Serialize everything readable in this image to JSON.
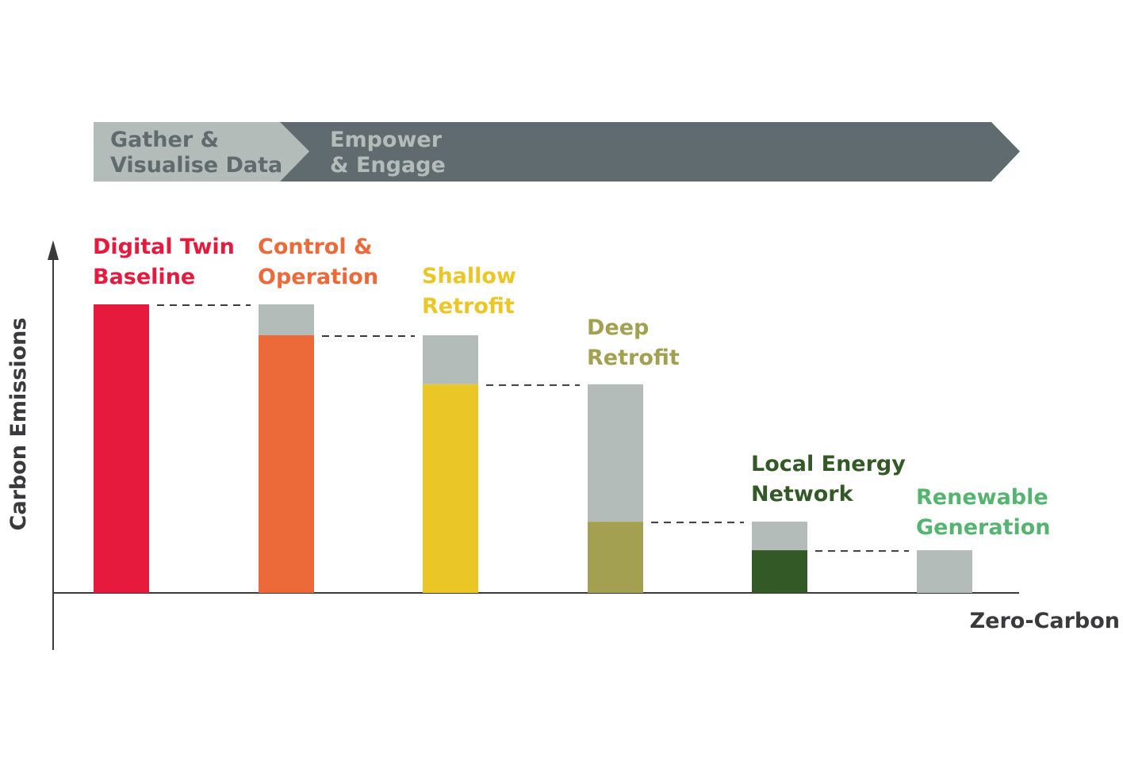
{
  "banner": {
    "stage1": [
      "Gather &",
      "Visualise Data"
    ],
    "stage2": [
      "Empower",
      "& Engage"
    ],
    "stage1_color": "#b4bcb9",
    "stage2_color": "#5f6b6e"
  },
  "chart_data": {
    "type": "bar",
    "subtype": "waterfall",
    "ylabel": "Carbon Emissions",
    "xlabel": "Zero-Carbon",
    "ylim": [
      0,
      100
    ],
    "grid": false,
    "y_ticks_shown": false,
    "categories": [
      {
        "label": [
          "Digital Twin",
          "Baseline"
        ],
        "color": "#e51a3c"
      },
      {
        "label": [
          "Control &",
          "Operation"
        ],
        "color": "#ec6a3a"
      },
      {
        "label": [
          "Shallow",
          "Retrofit"
        ],
        "color": "#eac627"
      },
      {
        "label": [
          "Deep",
          "Retrofit"
        ],
        "color": "#a4a052"
      },
      {
        "label": [
          "Local Energy",
          "Network"
        ],
        "color": "#335a26"
      },
      {
        "label": [
          "Renewable",
          "Generation"
        ],
        "color": "#55b46f"
      }
    ],
    "values": [
      100,
      89.3,
      72.3,
      24.7,
      14.8,
      0
    ],
    "previous_level_color": "#b4bcb9",
    "axis_color": "#3a3a3c"
  }
}
